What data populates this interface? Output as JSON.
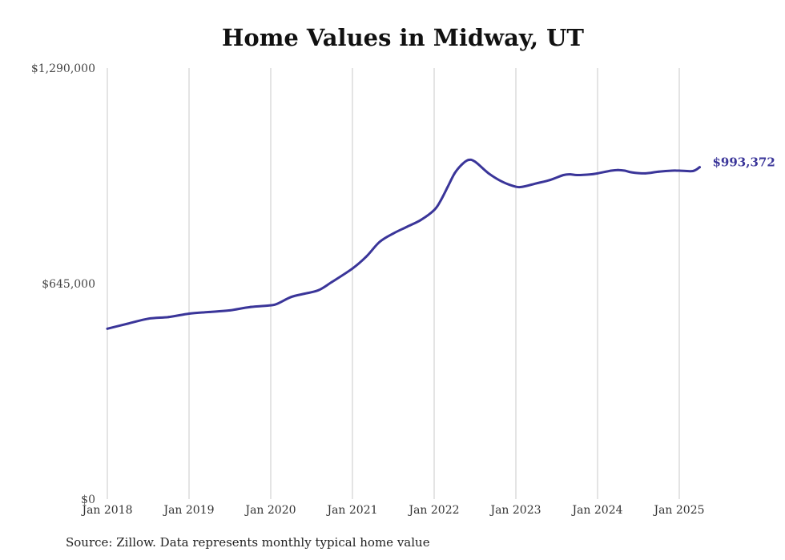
{
  "chart_data": {
    "type": "line",
    "title": "Home Values in Midway, UT",
    "xlabel": "",
    "ylabel": "",
    "ylim": [
      0,
      1290000
    ],
    "xlim": [
      "2018-01",
      "2025-04"
    ],
    "y_ticks": [
      {
        "value": 0,
        "label": "$0"
      },
      {
        "value": 645000,
        "label": "$645,000"
      },
      {
        "value": 1290000,
        "label": "$1,290,000"
      }
    ],
    "x_ticks": [
      {
        "date": "2018-01",
        "label": "Jan 2018"
      },
      {
        "date": "2019-01",
        "label": "Jan 2019"
      },
      {
        "date": "2020-01",
        "label": "Jan 2020"
      },
      {
        "date": "2021-01",
        "label": "Jan 2021"
      },
      {
        "date": "2022-01",
        "label": "Jan 2022"
      },
      {
        "date": "2023-01",
        "label": "Jan 2023"
      },
      {
        "date": "2024-01",
        "label": "Jan 2024"
      },
      {
        "date": "2025-01",
        "label": "Jan 2025"
      }
    ],
    "grid": "vertical",
    "line_color": "#3a3599",
    "series": [
      {
        "end_label": "$993,372",
        "x": [
          "2018-01",
          "2018-04",
          "2018-07",
          "2018-10",
          "2019-01",
          "2019-04",
          "2019-07",
          "2019-10",
          "2020-01",
          "2020-02",
          "2020-04",
          "2020-06",
          "2020-08",
          "2020-10",
          "2021-01",
          "2021-03",
          "2021-05",
          "2021-07",
          "2021-09",
          "2021-11",
          "2022-01",
          "2022-02",
          "2022-03",
          "2022-04",
          "2022-05",
          "2022-06",
          "2022-07",
          "2022-09",
          "2022-11",
          "2023-01",
          "2023-02",
          "2023-04",
          "2023-06",
          "2023-08",
          "2023-09",
          "2023-10",
          "2023-12",
          "2024-01",
          "2024-03",
          "2024-04",
          "2024-05",
          "2024-06",
          "2024-08",
          "2024-10",
          "2024-12",
          "2025-01",
          "2025-03",
          "2025-04"
        ],
        "y": [
          510000,
          525000,
          540000,
          545000,
          555000,
          560000,
          565000,
          575000,
          580000,
          585000,
          605000,
          615000,
          625000,
          650000,
          690000,
          725000,
          770000,
          795000,
          815000,
          835000,
          865000,
          895000,
          935000,
          975000,
          1000000,
          1015000,
          1010000,
          975000,
          950000,
          935000,
          935000,
          945000,
          955000,
          970000,
          972000,
          970000,
          972000,
          975000,
          983000,
          985000,
          983000,
          978000,
          975000,
          980000,
          983000,
          983000,
          982000,
          993372
        ]
      }
    ]
  },
  "source_note": "Source: Zillow. Data represents monthly typical home value"
}
